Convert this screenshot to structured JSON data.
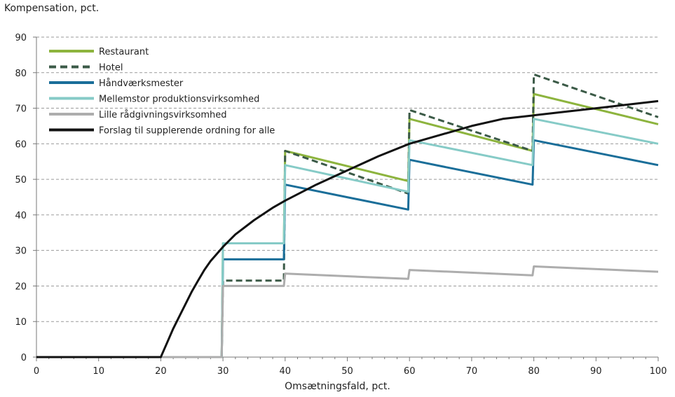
{
  "chart_data": {
    "type": "line",
    "ylabel": "Kompensation, pct.",
    "xlabel": "Omsætningsfald, pct.",
    "xlim": [
      0,
      100
    ],
    "ylim": [
      0,
      90
    ],
    "xticks": [
      0,
      10,
      20,
      30,
      40,
      50,
      60,
      70,
      80,
      90,
      100
    ],
    "yticks": [
      0,
      10,
      20,
      30,
      40,
      50,
      60,
      70,
      80,
      90
    ],
    "grid": "horizontal dashed",
    "legend_position": "top-left",
    "series": [
      {
        "name": "Restaurant",
        "color": "#8db43e",
        "style": "solid",
        "points": [
          [
            0,
            0
          ],
          [
            29.8,
            0
          ],
          [
            30,
            32
          ],
          [
            39.8,
            32
          ],
          [
            40,
            58
          ],
          [
            59.8,
            49.5
          ],
          [
            60,
            67
          ],
          [
            79.8,
            58
          ],
          [
            80,
            74
          ],
          [
            100,
            65.5
          ]
        ]
      },
      {
        "name": "Hotel",
        "color": "#3b5a47",
        "style": "dashed",
        "points": [
          [
            0,
            0
          ],
          [
            29.8,
            0
          ],
          [
            30,
            21.5
          ],
          [
            39.8,
            21.5
          ],
          [
            40,
            58
          ],
          [
            59.8,
            46
          ],
          [
            60,
            69.5
          ],
          [
            79.8,
            58
          ],
          [
            80,
            79.5
          ],
          [
            100,
            67.5
          ]
        ]
      },
      {
        "name": "Håndværksmester",
        "color": "#1a6e99",
        "style": "solid",
        "points": [
          [
            0,
            0
          ],
          [
            29.8,
            0
          ],
          [
            30,
            27.5
          ],
          [
            39.8,
            27.5
          ],
          [
            40,
            48.5
          ],
          [
            59.8,
            41.5
          ],
          [
            60,
            55.5
          ],
          [
            79.8,
            48.5
          ],
          [
            80,
            61
          ],
          [
            100,
            54
          ]
        ]
      },
      {
        "name": "Mellemstor produktionsvirksomhed",
        "color": "#86cbc7",
        "style": "solid",
        "points": [
          [
            0,
            0
          ],
          [
            29.8,
            0
          ],
          [
            30,
            32
          ],
          [
            39.8,
            32
          ],
          [
            40,
            54
          ],
          [
            59.8,
            46.5
          ],
          [
            60,
            61
          ],
          [
            79.8,
            54
          ],
          [
            80,
            67
          ],
          [
            100,
            60
          ]
        ]
      },
      {
        "name": "Lille rådgivningsvirksomhed",
        "color": "#adadad",
        "style": "solid",
        "points": [
          [
            0,
            0
          ],
          [
            29.8,
            0
          ],
          [
            30,
            20
          ],
          [
            39.8,
            20
          ],
          [
            40,
            23.5
          ],
          [
            59.8,
            22
          ],
          [
            60,
            24.5
          ],
          [
            79.8,
            23
          ],
          [
            80,
            25.5
          ],
          [
            100,
            24
          ]
        ]
      },
      {
        "name": "Forslag til supplerende ordning for alle",
        "color": "#111111",
        "style": "solid",
        "points": [
          [
            0,
            0
          ],
          [
            20,
            0
          ],
          [
            21,
            4
          ],
          [
            22,
            8
          ],
          [
            23,
            11.5
          ],
          [
            24,
            15
          ],
          [
            25,
            18.5
          ],
          [
            26,
            21.5
          ],
          [
            27,
            24.5
          ],
          [
            28,
            27
          ],
          [
            30,
            31
          ],
          [
            32,
            34.5
          ],
          [
            35,
            38.5
          ],
          [
            38,
            42
          ],
          [
            40,
            44
          ],
          [
            45,
            48.5
          ],
          [
            50,
            52.5
          ],
          [
            55,
            56.5
          ],
          [
            60,
            60
          ],
          [
            65,
            62.5
          ],
          [
            70,
            65
          ],
          [
            75,
            67
          ],
          [
            80,
            68
          ],
          [
            85,
            69
          ],
          [
            90,
            70
          ],
          [
            95,
            71
          ],
          [
            100,
            72
          ]
        ]
      }
    ]
  }
}
